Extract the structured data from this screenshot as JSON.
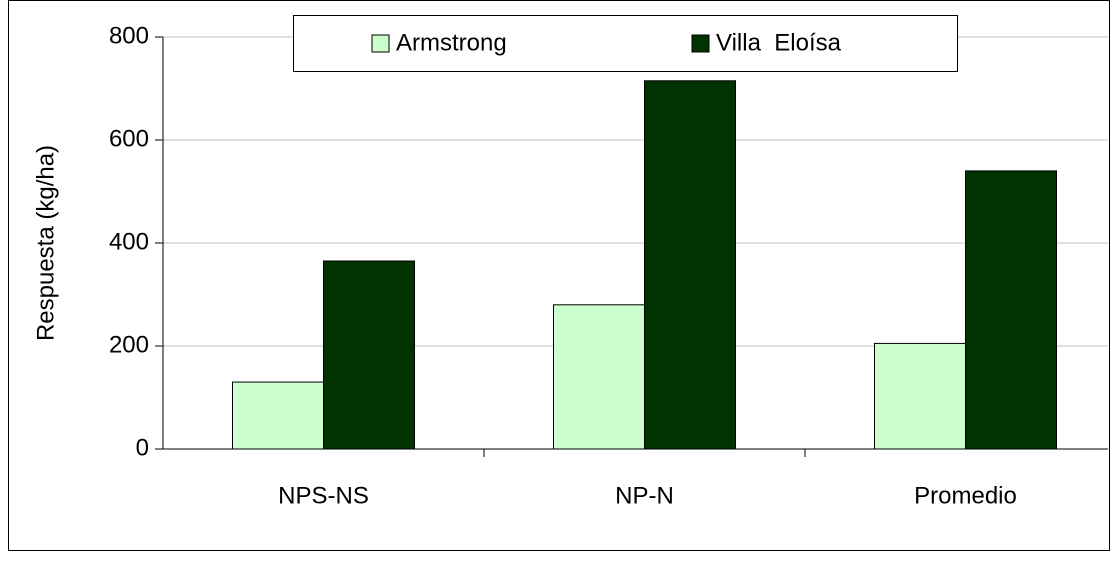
{
  "chart_data": {
    "type": "bar",
    "y_label": "Respuesta (kg/ha)",
    "categories": [
      "NPS-NS",
      "NP-N",
      "Promedio"
    ],
    "series": [
      {
        "name": "Armstrong",
        "color": "#ccffcc",
        "values": [
          130,
          280,
          205
        ]
      },
      {
        "name": "Villa  Eloísa",
        "color": "#003300",
        "values": [
          365,
          715,
          540
        ]
      }
    ],
    "ylim": [
      0,
      800
    ],
    "yticks": [
      0,
      200,
      400,
      600,
      800
    ],
    "grid": true,
    "legend": "top"
  }
}
